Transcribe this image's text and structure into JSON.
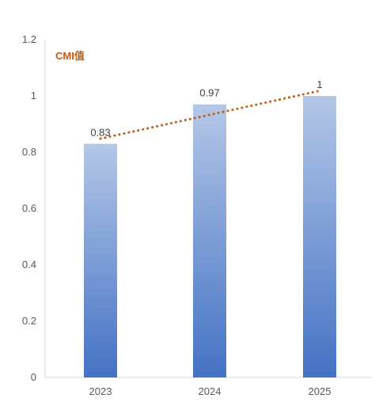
{
  "chart_data": {
    "type": "bar",
    "categories": [
      "2023",
      "2024",
      "2025"
    ],
    "series": [
      {
        "name": "CMI值",
        "values": [
          0.83,
          0.97,
          1
        ]
      }
    ],
    "data_labels": [
      "0.83",
      "0.97",
      "1"
    ],
    "ylim": [
      0,
      1.2
    ],
    "yticks": [
      "0",
      "0.2",
      "0.4",
      "0.6",
      "0.8",
      "1",
      "1.2"
    ],
    "trendline": {
      "style": "dotted",
      "color": "#C55A11"
    },
    "grid": false,
    "legend": "top-left",
    "colors": {
      "bar_top": "#B4C7E7",
      "bar_bottom": "#4472C4",
      "series_label": "#C55A11",
      "axis": "#D9D9D9"
    }
  }
}
